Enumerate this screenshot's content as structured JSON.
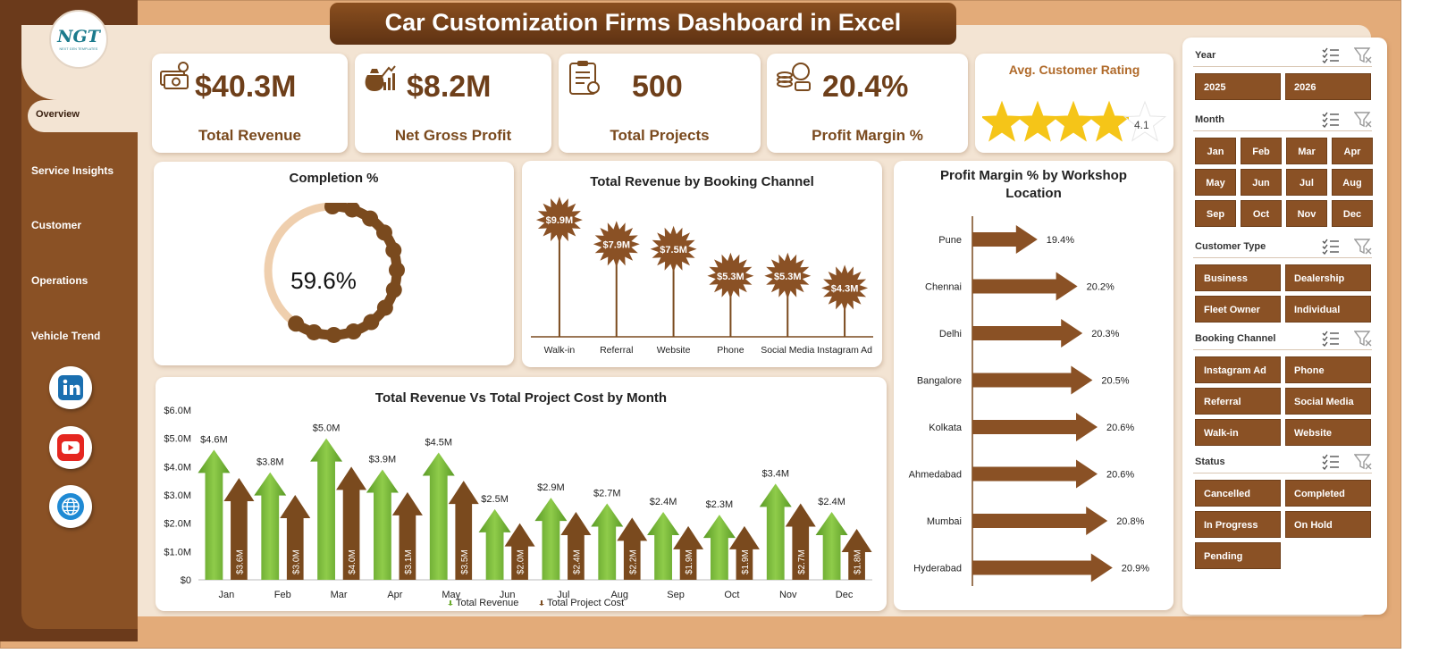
{
  "app": {
    "title": "Car Customization Firms Dashboard in Excel",
    "logo_text": "NGT",
    "logo_sub": "NEXT GEN TEMPLATES"
  },
  "nav": {
    "items": [
      {
        "label": "Overview",
        "active": true
      },
      {
        "label": "Service Insights",
        "active": false
      },
      {
        "label": "Customer",
        "active": false
      },
      {
        "label": "Operations",
        "active": false
      },
      {
        "label": "Vehicle Trend",
        "active": false
      }
    ],
    "social": [
      "linkedin-icon",
      "youtube-icon",
      "globe-icon"
    ]
  },
  "kpis": [
    {
      "value": "$40.3M",
      "label": "Total Revenue",
      "icon": "money-icon"
    },
    {
      "value": "$8.2M",
      "label": "Net Gross Profit",
      "icon": "profit-bag-icon"
    },
    {
      "value": "500",
      "label": "Total Projects",
      "icon": "clipboard-icon"
    },
    {
      "value": "20.4%",
      "label": "Profit Margin %",
      "icon": "coins-icon"
    }
  ],
  "rating": {
    "title": "Avg. Customer Rating",
    "value": 4.1,
    "value_label": "4.1",
    "max": 5
  },
  "completion": {
    "title": "Completion %",
    "value": 59.6,
    "label": "59.6%"
  },
  "chart_data": [
    {
      "type": "bar",
      "title": "Total Revenue  by Booking Channel",
      "categories": [
        "Walk-in",
        "Referral",
        "Website",
        "Phone",
        "Social Media",
        "Instagram Ad"
      ],
      "values": [
        9.9,
        7.9,
        7.5,
        5.3,
        5.3,
        4.3
      ],
      "data_labels": [
        "$9.9M",
        "$7.9M",
        "$7.5M",
        "$5.3M",
        "$5.3M",
        "$4.3M"
      ],
      "unit": "$M"
    },
    {
      "type": "bar",
      "orientation": "horizontal",
      "title": "Profit Margin % by Workshop Location",
      "categories": [
        "Pune",
        "Chennai",
        "Delhi",
        "Bangalore",
        "Kolkata",
        "Ahmedabad",
        "Mumbai",
        "Hyderabad"
      ],
      "values": [
        19.4,
        20.2,
        20.3,
        20.5,
        20.6,
        20.6,
        20.8,
        20.9
      ],
      "data_labels": [
        "19.4%",
        "20.2%",
        "20.3%",
        "20.5%",
        "20.6%",
        "20.6%",
        "20.8%",
        "20.9%"
      ]
    },
    {
      "type": "bar",
      "title": "Total Revenue  Vs Total Project Cost by Month",
      "categories": [
        "Jan",
        "Feb",
        "Mar",
        "Apr",
        "May",
        "Jun",
        "Jul",
        "Aug",
        "Sep",
        "Oct",
        "Nov",
        "Dec"
      ],
      "series": [
        {
          "name": "Total Revenue",
          "color": "#6aaa2e",
          "values": [
            4.6,
            3.8,
            5.0,
            3.9,
            4.5,
            2.5,
            2.9,
            2.7,
            2.4,
            2.3,
            3.4,
            2.4
          ],
          "labels": [
            "$4.6M",
            "$3.8M",
            "$5.0M",
            "$3.9M",
            "$4.5M",
            "$2.5M",
            "$2.9M",
            "$2.7M",
            "$2.4M",
            "$2.3M",
            "$3.4M",
            "$2.4M"
          ]
        },
        {
          "name": "Total Project Cost",
          "color": "#7a4a1e",
          "values": [
            3.6,
            3.0,
            4.0,
            3.1,
            3.5,
            2.0,
            2.4,
            2.2,
            1.9,
            1.9,
            2.7,
            1.8
          ],
          "labels": [
            "$3.6M",
            "$3.0M",
            "$4.0M",
            "$3.1M",
            "$3.5M",
            "$2.0M",
            "$2.4M",
            "$2.2M",
            "$1.9M",
            "$1.9M",
            "$2.7M",
            "$1.8M"
          ]
        }
      ],
      "y_ticks": [
        "$0",
        "$1.0M",
        "$2.0M",
        "$3.0M",
        "$4.0M",
        "$5.0M",
        "$6.0M"
      ],
      "ylim": [
        0,
        6
      ],
      "legend": "bottom"
    }
  ],
  "slicers": [
    {
      "title": "Year",
      "items": [
        "2025",
        "2026"
      ],
      "cols": 2
    },
    {
      "title": "Month",
      "items": [
        "Jan",
        "Feb",
        "Mar",
        "Apr",
        "May",
        "Jun",
        "Jul",
        "Aug",
        "Sep",
        "Oct",
        "Nov",
        "Dec"
      ],
      "cols": 4
    },
    {
      "title": "Customer Type",
      "items": [
        "Business",
        "Dealership",
        "Fleet Owner",
        "Individual"
      ],
      "cols": 2
    },
    {
      "title": "Booking Channel",
      "items": [
        "Instagram Ad",
        "Phone",
        "Referral",
        "Social Media",
        "Walk-in",
        "Website"
      ],
      "cols": 2
    },
    {
      "title": "Status",
      "items": [
        "Cancelled",
        "Completed",
        "In Progress",
        "On Hold",
        "Pending"
      ],
      "cols": 2
    }
  ],
  "colors": {
    "brown_dark": "#6e3f1a",
    "brown_mid": "#8a5125",
    "cream": "#f3e4d3",
    "green": "#6aaa2e",
    "gold_star": "#f5c518"
  }
}
